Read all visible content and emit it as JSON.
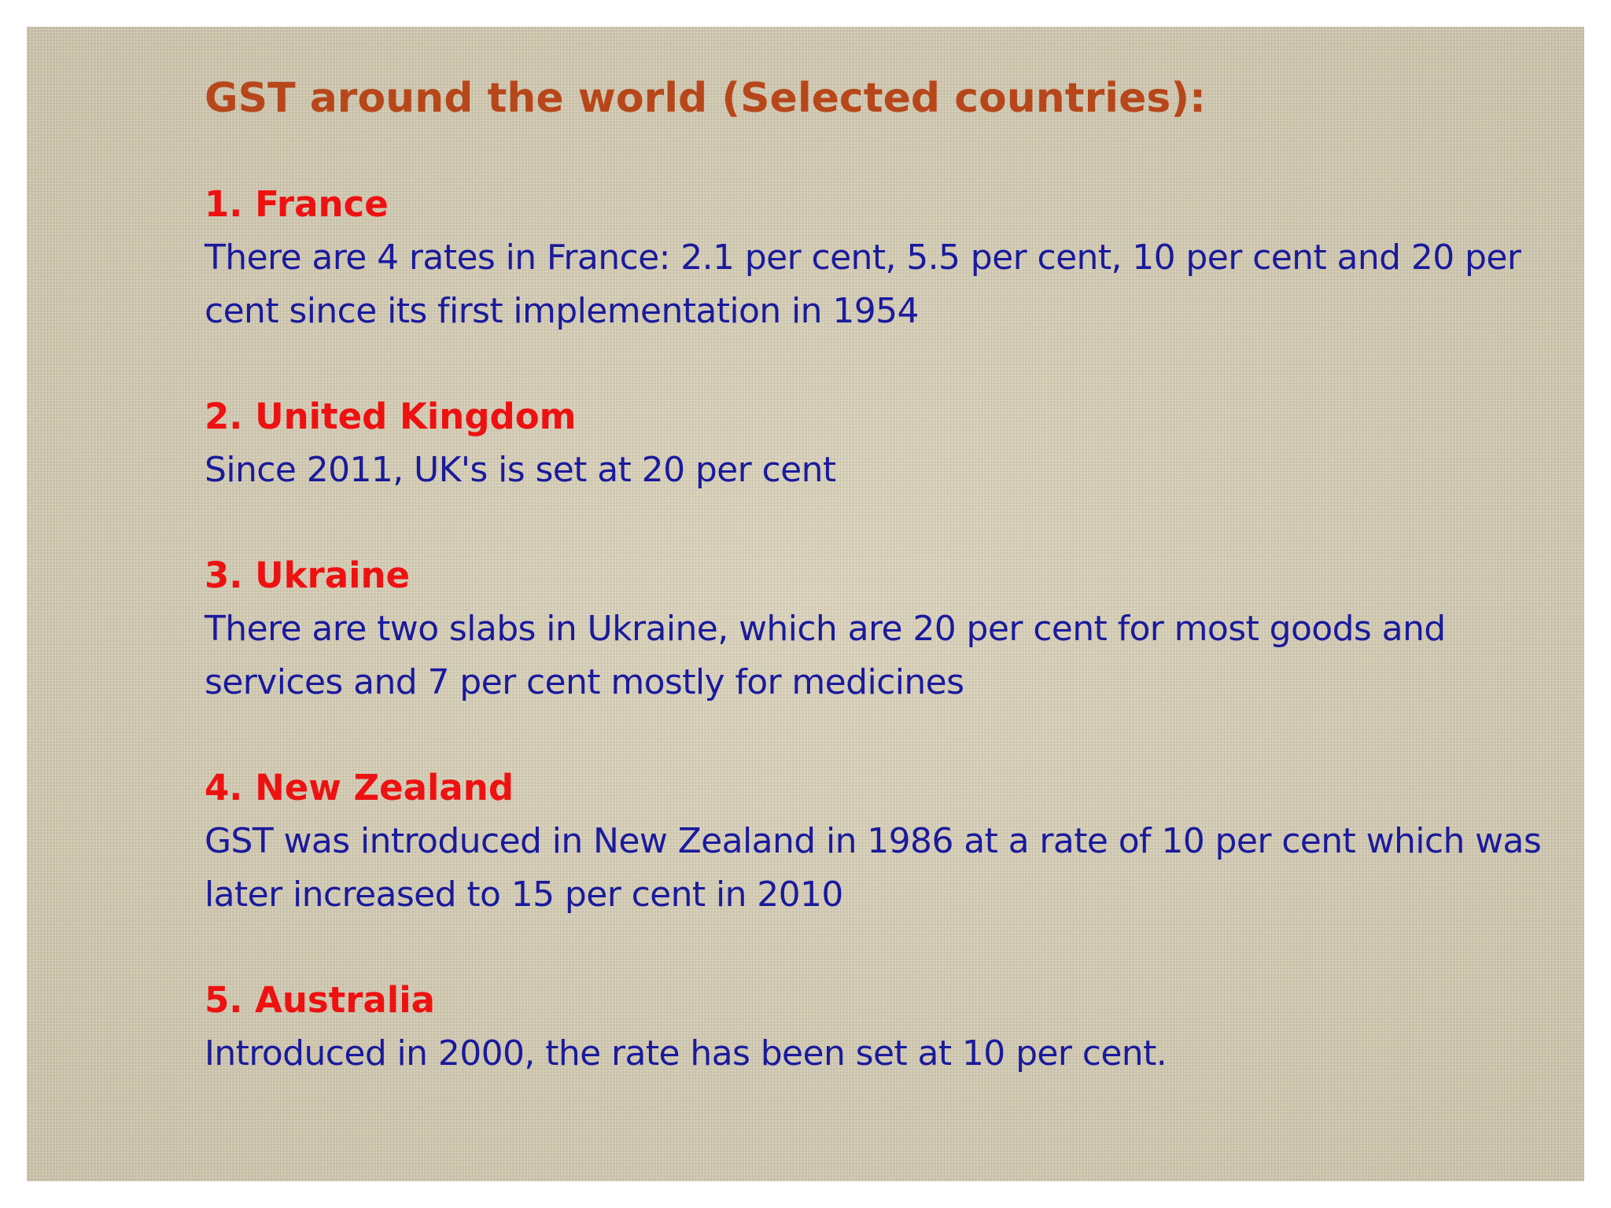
{
  "title": "GST around the world (Selected countries):",
  "sections": [
    {
      "heading": "1. France",
      "body": "There are 4 rates in France: 2.1 per cent, 5.5 per cent, 10 per cent and  20 per cent since its first implementation in 1954"
    },
    {
      "heading": "2. United Kingdom",
      "body": "Since 2011, UK's  is set at 20 per cent"
    },
    {
      "heading": "3. Ukraine",
      "body": "There are two slabs in Ukraine, which are 20 per cent for most goods and services and 7 per cent mostly for medicines"
    },
    {
      "heading": "4. New Zealand",
      "body": "GST was introduced in New Zealand in 1986 at a rate of 10 per cent which was later increased to 15 per cent in 2010"
    },
    {
      "heading": "5. Australia",
      "body": "Introduced in 2000, the rate has been set at 10 per cent."
    }
  ],
  "colors": {
    "title": "#b7471a",
    "heading": "#ee1111",
    "body": "#1a1a9c",
    "background": "#d8cfb4"
  }
}
